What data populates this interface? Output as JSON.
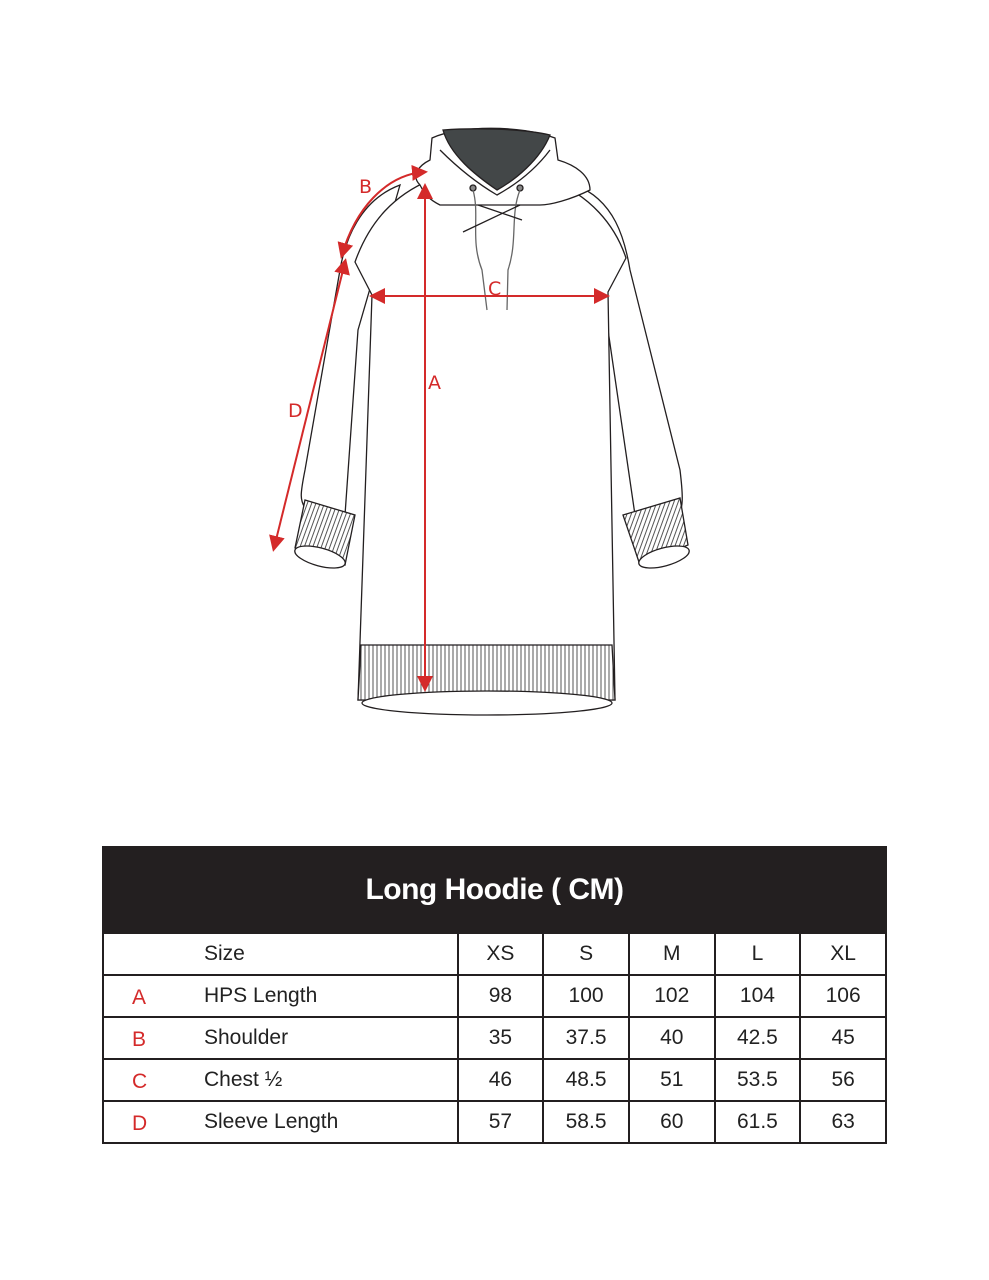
{
  "diagram": {
    "arrow_color": "#d42a2a",
    "labels": {
      "a": "A",
      "b": "B",
      "c": "C",
      "d": "D"
    }
  },
  "size_chart": {
    "title": "Long Hoodie ( CM)",
    "header": {
      "label": "Size",
      "sizes": [
        "XS",
        "S",
        "M",
        "L",
        "XL"
      ]
    },
    "rows": [
      {
        "letter": "A",
        "name": "HPS Length",
        "values": [
          "98",
          "100",
          "102",
          "104",
          "106"
        ]
      },
      {
        "letter": "B",
        "name": "Shoulder",
        "values": [
          "35",
          "37.5",
          "40",
          "42.5",
          "45"
        ]
      },
      {
        "letter": "C",
        "name": "Chest ½",
        "values": [
          "46",
          "48.5",
          "51",
          "53.5",
          "56"
        ]
      },
      {
        "letter": "D",
        "name": "Sleeve Length",
        "values": [
          "57",
          "58.5",
          "60",
          "61.5",
          "63"
        ]
      }
    ]
  }
}
